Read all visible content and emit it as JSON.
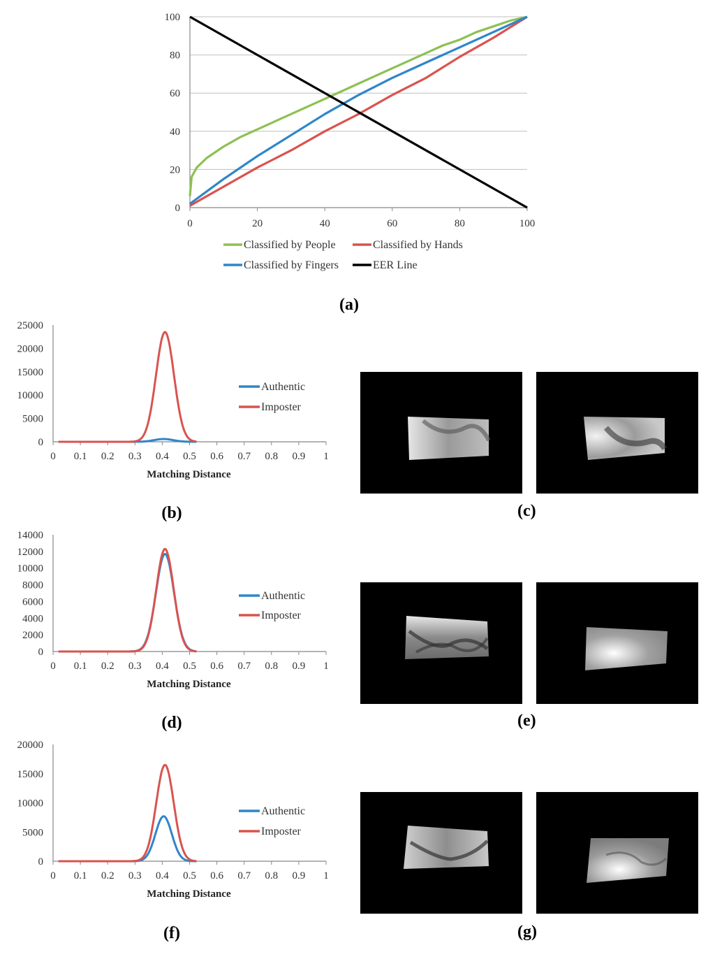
{
  "chart_data": [
    {
      "panel": "a",
      "type": "line",
      "xlim": [
        0,
        100
      ],
      "ylim": [
        0,
        100
      ],
      "xticks": [
        "0",
        "20",
        "40",
        "60",
        "80",
        "100"
      ],
      "yticks": [
        "0",
        "20",
        "40",
        "60",
        "80",
        "100"
      ],
      "grid": "horizontal",
      "legend_position": "bottom",
      "series": [
        {
          "name": "Classified by People",
          "color": "#8cc152",
          "x": [
            0,
            0.5,
            2,
            5,
            10,
            15,
            20,
            25,
            30,
            35,
            40,
            45,
            50,
            55,
            60,
            65,
            70,
            75,
            80,
            85,
            90,
            95,
            100
          ],
          "y": [
            6,
            16,
            21,
            26,
            32,
            37,
            41,
            45,
            49,
            53,
            57,
            61,
            65,
            69,
            73,
            77,
            81,
            85,
            88,
            92,
            95,
            98,
            100
          ]
        },
        {
          "name": "Classified by Hands",
          "color": "#d9534f",
          "x": [
            0,
            10,
            20,
            30,
            40,
            50,
            60,
            70,
            80,
            90,
            100
          ],
          "y": [
            1,
            11,
            21,
            30,
            40,
            49,
            59,
            68,
            79,
            89,
            100
          ]
        },
        {
          "name": "Classified by Fingers",
          "color": "#2e86c8",
          "x": [
            0,
            10,
            20,
            30,
            40,
            50,
            60,
            70,
            80,
            90,
            100
          ],
          "y": [
            2,
            15,
            27,
            38,
            49,
            59,
            68,
            76,
            84,
            92,
            100
          ]
        },
        {
          "name": "EER Line",
          "color": "#000000",
          "x": [
            0,
            100
          ],
          "y": [
            100,
            0
          ]
        }
      ],
      "legend": [
        "Classified by People",
        "Classified by Hands",
        "Classified by Fingers",
        "EER Line"
      ],
      "label": "(a)"
    },
    {
      "panel": "b",
      "type": "line",
      "xlim": [
        0,
        1
      ],
      "ylim": [
        0,
        25000
      ],
      "xticks": [
        "0",
        "0.1",
        "0.2",
        "0.3",
        "0.4",
        "0.5",
        "0.6",
        "0.7",
        "0.8",
        "0.9",
        "1"
      ],
      "yticks": [
        "0",
        "5000",
        "10000",
        "15000",
        "20000",
        "25000"
      ],
      "xlabel": "Matching Distance",
      "legend_position": "right",
      "series": [
        {
          "name": "Authentic",
          "color": "#2e86c8",
          "peak": 600,
          "center": 0.405,
          "sigma": 0.035
        },
        {
          "name": "Imposter",
          "color": "#d9534f",
          "peak": 23500,
          "center": 0.41,
          "sigma": 0.033
        }
      ],
      "label": "(b)"
    },
    {
      "panel": "d",
      "type": "line",
      "xlim": [
        0,
        1
      ],
      "ylim": [
        0,
        14000
      ],
      "xticks": [
        "0",
        "0.1",
        "0.2",
        "0.3",
        "0.4",
        "0.5",
        "0.6",
        "0.7",
        "0.8",
        "0.9",
        "1"
      ],
      "yticks": [
        "0",
        "2000",
        "4000",
        "6000",
        "8000",
        "10000",
        "12000",
        "14000"
      ],
      "xlabel": "Matching Distance",
      "legend_position": "right",
      "series": [
        {
          "name": "Authentic",
          "color": "#2e86c8",
          "peak": 11700,
          "center": 0.41,
          "sigma": 0.033
        },
        {
          "name": "Imposter",
          "color": "#d9534f",
          "peak": 12300,
          "center": 0.41,
          "sigma": 0.032
        }
      ],
      "label": "(d)"
    },
    {
      "panel": "f",
      "type": "line",
      "xlim": [
        0,
        1
      ],
      "ylim": [
        0,
        20000
      ],
      "xticks": [
        "0",
        "0.1",
        "0.2",
        "0.3",
        "0.4",
        "0.5",
        "0.6",
        "0.7",
        "0.8",
        "0.9",
        "1"
      ],
      "yticks": [
        "0",
        "5000",
        "10000",
        "15000",
        "20000"
      ],
      "xlabel": "Matching Distance",
      "legend_position": "right",
      "series": [
        {
          "name": "Authentic",
          "color": "#2e86c8",
          "peak": 7700,
          "center": 0.405,
          "sigma": 0.03
        },
        {
          "name": "Imposter",
          "color": "#d9534f",
          "peak": 16500,
          "center": 0.41,
          "sigma": 0.032
        }
      ],
      "label": "(f)"
    }
  ],
  "image_labels": {
    "c": "(c)",
    "e": "(e)",
    "g": "(g)"
  }
}
